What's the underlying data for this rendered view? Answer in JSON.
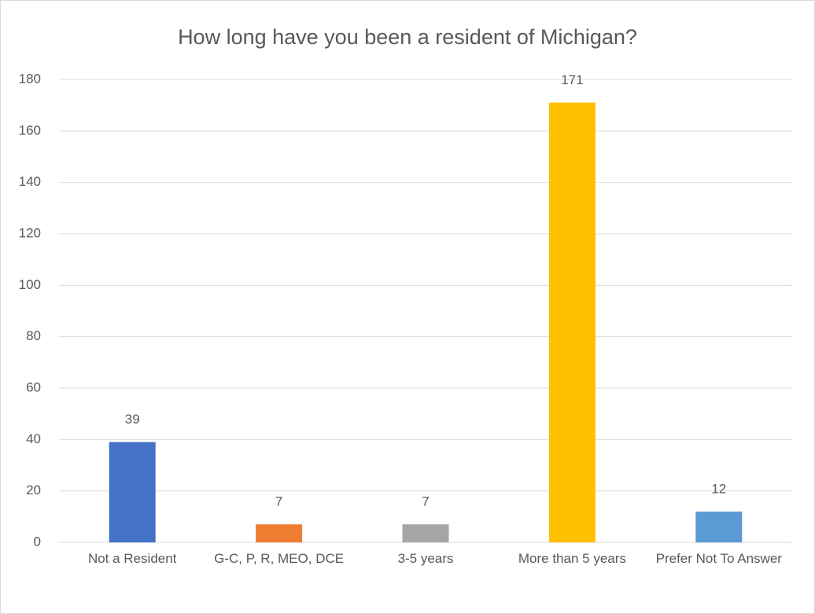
{
  "chart_data": {
    "type": "bar",
    "title": "How long have you been a resident of Michigan?",
    "categories": [
      "Not a Resident",
      "G-C, P, R, MEO, DCE",
      "3-5 years",
      "More than 5 years",
      "Prefer Not To Answer"
    ],
    "values": [
      39,
      7,
      7,
      171,
      12
    ],
    "colors": [
      "#4472c4",
      "#ed7d31",
      "#a5a5a5",
      "#ffc000",
      "#5b9bd5"
    ],
    "ylim": [
      0,
      180
    ],
    "yticks": [
      0,
      20,
      40,
      60,
      80,
      100,
      120,
      140,
      160,
      180
    ],
    "grid": true
  }
}
